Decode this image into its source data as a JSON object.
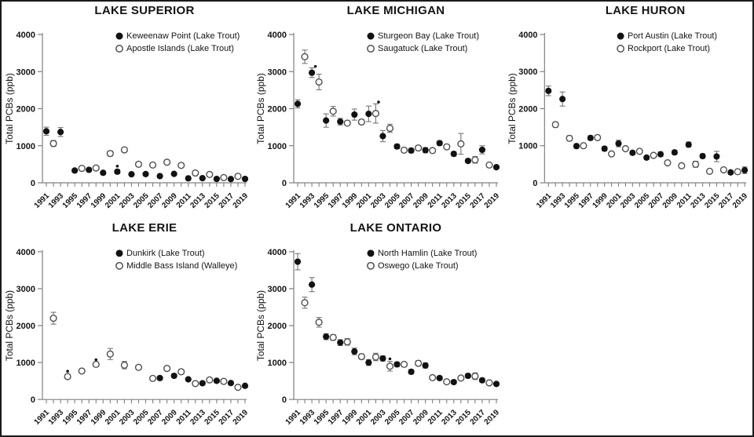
{
  "figure": {
    "background": "#ffffff",
    "border_color": "#1a1a1a",
    "colors": {
      "filled_marker": "#121212",
      "open_marker_stroke": "#4f4f4f",
      "open_marker_fill": "#ffffff",
      "error_bar": "#757575",
      "axis_line": "#808080",
      "text": "#141414"
    }
  },
  "chart_data": [
    {
      "type": "scatter",
      "title": "LAKE SUPERIOR",
      "ylabel": "Total PCBs (ppb)",
      "ylim": [
        0,
        4000
      ],
      "yticks": [
        0,
        1000,
        2000,
        3000,
        4000
      ],
      "xlim": [
        1991,
        2019
      ],
      "xtick_labels": [
        1991,
        1993,
        1995,
        1997,
        1999,
        2001,
        2003,
        2005,
        2007,
        2009,
        2011,
        2013,
        2015,
        2017,
        2019
      ],
      "grid": false,
      "legend_position": "inside-top-right",
      "series": [
        {
          "name": "Keweenaw Point (Lake Trout)",
          "marker": "filled-circle",
          "points": [
            [
              1991,
              1390,
              110
            ],
            [
              1993,
              1370,
              120
            ],
            [
              1995,
              330,
              45
            ],
            [
              1997,
              350,
              45
            ],
            [
              1999,
              270,
              35
            ],
            [
              2001,
              300,
              55
            ],
            [
              2003,
              230,
              35
            ],
            [
              2005,
              235,
              35
            ],
            [
              2007,
              180,
              30
            ],
            [
              2009,
              240,
              35
            ],
            [
              2011,
              120,
              20
            ],
            [
              2013,
              125,
              20
            ],
            [
              2015,
              105,
              18
            ],
            [
              2017,
              100,
              15
            ],
            [
              2019,
              105,
              18
            ]
          ]
        },
        {
          "name": "Apostle Islands (Lake Trout)",
          "marker": "open-circle",
          "points": [
            [
              1992,
              1060,
              80
            ],
            [
              1996,
              390,
              45
            ],
            [
              1998,
              400,
              45
            ],
            [
              2000,
              790,
              70
            ],
            [
              2002,
              890,
              60
            ],
            [
              2004,
              500,
              60
            ],
            [
              2006,
              480,
              55
            ],
            [
              2008,
              555,
              50
            ],
            [
              2010,
              470,
              45
            ],
            [
              2012,
              265,
              35
            ],
            [
              2014,
              225,
              30
            ],
            [
              2016,
              140,
              25
            ],
            [
              2018,
              175,
              30
            ]
          ]
        }
      ],
      "annotations": [
        {
          "x": 2001,
          "y": 450,
          "symbol": "*"
        }
      ]
    },
    {
      "type": "scatter",
      "title": "LAKE MICHIGAN",
      "ylabel": "Total PCBs (ppb)",
      "ylim": [
        0,
        4000
      ],
      "yticks": [
        0,
        1000,
        2000,
        3000,
        4000
      ],
      "xlim": [
        1991,
        2019
      ],
      "xtick_labels": [
        1991,
        1993,
        1995,
        1997,
        1999,
        2001,
        2003,
        2005,
        2007,
        2009,
        2011,
        2013,
        2015,
        2017,
        2019
      ],
      "grid": false,
      "legend_position": "inside-top-right",
      "series": [
        {
          "name": "Sturgeon Bay (Lake Trout)",
          "marker": "filled-circle",
          "points": [
            [
              1991,
              2130,
              110
            ],
            [
              1993,
              2970,
              130
            ],
            [
              1995,
              1680,
              180
            ],
            [
              1997,
              1650,
              90
            ],
            [
              1999,
              1840,
              150
            ],
            [
              2001,
              1860,
              210
            ],
            [
              2003,
              1260,
              150
            ],
            [
              2005,
              980,
              60
            ],
            [
              2007,
              870,
              60
            ],
            [
              2009,
              880,
              70
            ],
            [
              2011,
              1070,
              60
            ],
            [
              2013,
              780,
              60
            ],
            [
              2015,
              590,
              50
            ],
            [
              2017,
              890,
              110
            ],
            [
              2019,
              420,
              40
            ]
          ]
        },
        {
          "name": "Saugatuck (Lake Trout)",
          "marker": "open-circle",
          "points": [
            [
              1992,
              3400,
              180
            ],
            [
              1994,
              2720,
              210
            ],
            [
              1996,
              1930,
              130
            ],
            [
              1998,
              1610,
              60
            ],
            [
              2000,
              1640,
              60
            ],
            [
              2002,
              1870,
              260
            ],
            [
              2004,
              1470,
              110
            ],
            [
              2006,
              880,
              60
            ],
            [
              2008,
              940,
              60
            ],
            [
              2010,
              870,
              50
            ],
            [
              2012,
              970,
              60
            ],
            [
              2014,
              1050,
              280
            ],
            [
              2016,
              620,
              90
            ],
            [
              2018,
              480,
              50
            ]
          ]
        }
      ],
      "annotations": [
        {
          "x": 1993.5,
          "y": 3140,
          "symbol": "*"
        },
        {
          "x": 2002.4,
          "y": 2180,
          "symbol": "*"
        }
      ]
    },
    {
      "type": "scatter",
      "title": "LAKE HURON",
      "ylabel": "Total PCBs (ppb)",
      "ylim": [
        0,
        4000
      ],
      "yticks": [
        0,
        1000,
        2000,
        3000,
        4000
      ],
      "xlim": [
        1991,
        2019
      ],
      "xtick_labels": [
        1991,
        1993,
        1995,
        1997,
        1999,
        2001,
        2003,
        2005,
        2007,
        2009,
        2011,
        2013,
        2015,
        2017,
        2019
      ],
      "grid": false,
      "legend_position": "inside-top-right",
      "series": [
        {
          "name": "Port Austin (Lake Trout)",
          "marker": "filled-circle",
          "points": [
            [
              1991,
              2480,
              130
            ],
            [
              1993,
              2260,
              190
            ],
            [
              1995,
              990,
              60
            ],
            [
              1997,
              1210,
              60
            ],
            [
              1999,
              920,
              60
            ],
            [
              2001,
              1060,
              90
            ],
            [
              2003,
              810,
              50
            ],
            [
              2005,
              680,
              50
            ],
            [
              2007,
              770,
              60
            ],
            [
              2009,
              820,
              60
            ],
            [
              2011,
              1030,
              70
            ],
            [
              2013,
              720,
              60
            ],
            [
              2015,
              710,
              140
            ],
            [
              2017,
              280,
              40
            ],
            [
              2019,
              340,
              90
            ]
          ]
        },
        {
          "name": "Rockport (Lake Trout)",
          "marker": "open-circle",
          "points": [
            [
              1992,
              1570,
              70
            ],
            [
              1994,
              1200,
              70
            ],
            [
              1996,
              1000,
              50
            ],
            [
              1998,
              1220,
              60
            ],
            [
              2000,
              780,
              50
            ],
            [
              2002,
              920,
              50
            ],
            [
              2004,
              850,
              50
            ],
            [
              2006,
              740,
              50
            ],
            [
              2008,
              540,
              50
            ],
            [
              2010,
              460,
              60
            ],
            [
              2012,
              500,
              80
            ],
            [
              2014,
              310,
              40
            ],
            [
              2016,
              350,
              40
            ],
            [
              2018,
              300,
              30
            ]
          ]
        }
      ],
      "annotations": []
    },
    {
      "type": "scatter",
      "title": "LAKE ERIE",
      "ylabel": "Total PCBs (ppb)",
      "ylim": [
        0,
        4000
      ],
      "yticks": [
        0,
        1000,
        2000,
        3000,
        4000
      ],
      "xlim": [
        1991,
        2019
      ],
      "xtick_labels": [
        1991,
        1993,
        1995,
        1997,
        1999,
        2001,
        2003,
        2005,
        2007,
        2009,
        2011,
        2013,
        2015,
        2017,
        2019
      ],
      "grid": false,
      "legend_position": "inside-top-right",
      "series": [
        {
          "name": "Dunkirk (Lake Trout)",
          "marker": "filled-circle",
          "points": [
            [
              2007,
              580,
              50
            ],
            [
              2009,
              640,
              50
            ],
            [
              2011,
              545,
              40
            ],
            [
              2013,
              440,
              40
            ],
            [
              2015,
              505,
              40
            ],
            [
              2017,
              445,
              40
            ],
            [
              2019,
              370,
              35
            ]
          ]
        },
        {
          "name": "Middle Bass Island (Walleye)",
          "marker": "open-circle",
          "points": [
            [
              1992,
              2200,
              160
            ],
            [
              1994,
              620,
              60
            ],
            [
              1996,
              770,
              50
            ],
            [
              1998,
              950,
              60
            ],
            [
              2000,
              1230,
              150
            ],
            [
              2002,
              930,
              100
            ],
            [
              2004,
              870,
              50
            ],
            [
              2006,
              570,
              50
            ],
            [
              2008,
              840,
              50
            ],
            [
              2010,
              750,
              60
            ],
            [
              2012,
              430,
              40
            ],
            [
              2014,
              530,
              40
            ],
            [
              2016,
              490,
              40
            ],
            [
              2018,
              330,
              30
            ]
          ]
        }
      ],
      "annotations": [
        {
          "x": 1994,
          "y": 765,
          "symbol": "*"
        },
        {
          "x": 1998,
          "y": 1075,
          "symbol": "*"
        }
      ]
    },
    {
      "type": "scatter",
      "title": "LAKE ONTARIO",
      "ylabel": "Total PCBs (ppb)",
      "ylim": [
        0,
        4000
      ],
      "yticks": [
        0,
        1000,
        2000,
        3000,
        4000
      ],
      "xlim": [
        1991,
        2019
      ],
      "xtick_labels": [
        1991,
        1993,
        1995,
        1997,
        1999,
        2001,
        2003,
        2005,
        2007,
        2009,
        2011,
        2013,
        2015,
        2017,
        2019
      ],
      "grid": false,
      "legend_position": "inside-top-right",
      "series": [
        {
          "name": "North Hamlin (Lake Trout)",
          "marker": "filled-circle",
          "points": [
            [
              1991,
              3730,
              220
            ],
            [
              1993,
              3110,
              190
            ],
            [
              1995,
              1700,
              80
            ],
            [
              1997,
              1540,
              80
            ],
            [
              1999,
              1300,
              90
            ],
            [
              2001,
              1000,
              80
            ],
            [
              2003,
              1110,
              70
            ],
            [
              2005,
              950,
              60
            ],
            [
              2007,
              750,
              60
            ],
            [
              2009,
              920,
              70
            ],
            [
              2011,
              580,
              50
            ],
            [
              2013,
              470,
              50
            ],
            [
              2015,
              640,
              60
            ],
            [
              2017,
              520,
              50
            ],
            [
              2019,
              420,
              40
            ]
          ]
        },
        {
          "name": "Oswego (Lake Trout)",
          "marker": "open-circle",
          "points": [
            [
              1992,
              2620,
              150
            ],
            [
              1994,
              2090,
              130
            ],
            [
              1996,
              1680,
              70
            ],
            [
              1998,
              1560,
              90
            ],
            [
              2000,
              1160,
              70
            ],
            [
              2002,
              1150,
              100
            ],
            [
              2004,
              900,
              130
            ],
            [
              2006,
              950,
              60
            ],
            [
              2008,
              980,
              70
            ],
            [
              2010,
              590,
              50
            ],
            [
              2012,
              480,
              40
            ],
            [
              2014,
              580,
              50
            ],
            [
              2016,
              630,
              90
            ],
            [
              2018,
              450,
              40
            ]
          ]
        }
      ],
      "annotations": [
        {
          "x": 2004,
          "y": 1100,
          "symbol": "*"
        }
      ]
    }
  ]
}
